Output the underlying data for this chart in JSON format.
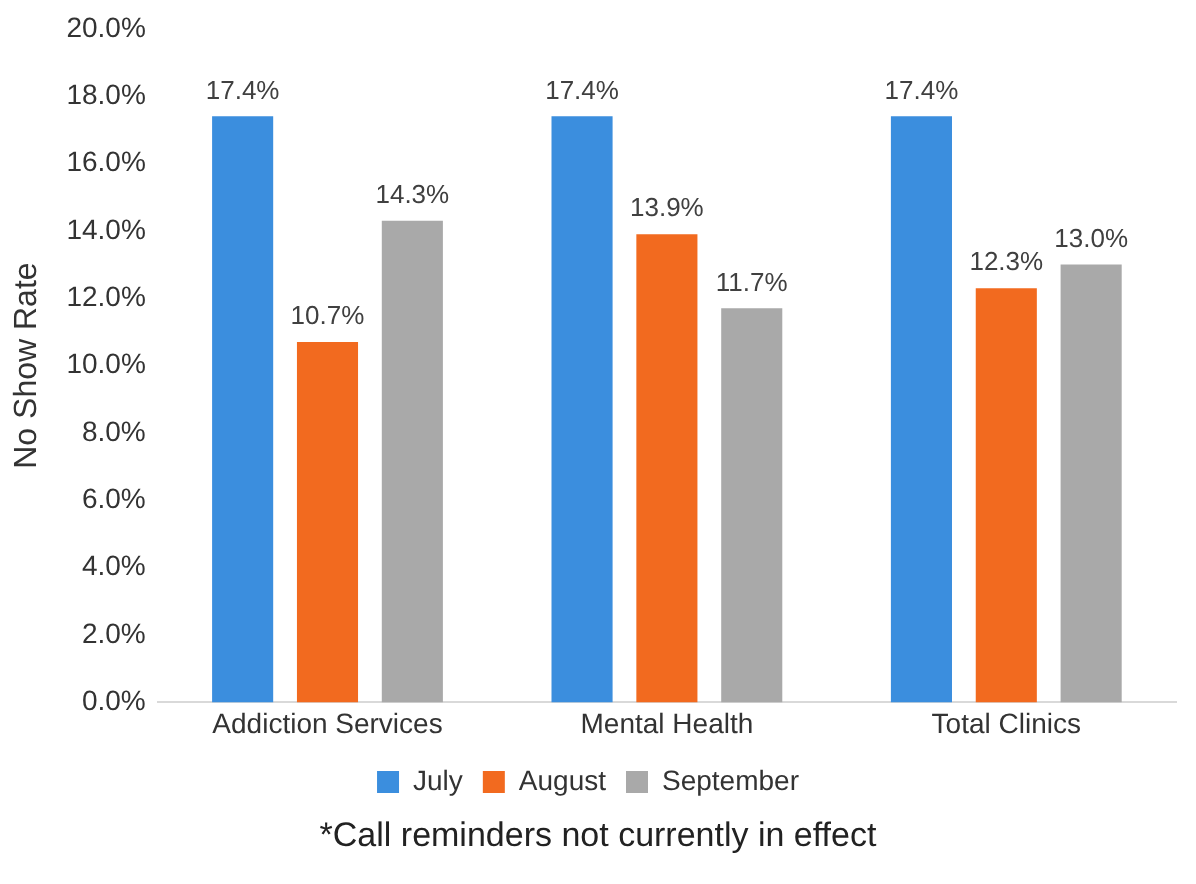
{
  "chart_data": {
    "type": "bar",
    "ylabel": "No Show Rate",
    "categories": [
      "Addiction Services",
      "Mental Health",
      "Total Clinics"
    ],
    "series": [
      {
        "name": "July",
        "color": "#3b8ede",
        "values": [
          17.4,
          17.4,
          17.4
        ],
        "value_labels": [
          "17.4%",
          "17.4%",
          "17.4%"
        ]
      },
      {
        "name": "August",
        "color": "#f26a1f",
        "values": [
          10.7,
          13.9,
          12.3
        ],
        "value_labels": [
          "10.7%",
          "13.9%",
          "12.3%"
        ]
      },
      {
        "name": "September",
        "color": "#a9a9a9",
        "values": [
          14.3,
          11.7,
          13.0
        ],
        "value_labels": [
          "14.3%",
          "11.7%",
          "13.0%"
        ]
      }
    ],
    "ylim": [
      0,
      20
    ],
    "yticks": [
      {
        "value": 0,
        "label": "0.0%"
      },
      {
        "value": 2,
        "label": "2.0%"
      },
      {
        "value": 4,
        "label": "4.0%"
      },
      {
        "value": 6,
        "label": "6.0%"
      },
      {
        "value": 8,
        "label": "8.0%"
      },
      {
        "value": 10,
        "label": "10.0%"
      },
      {
        "value": 12,
        "label": "12.0%"
      },
      {
        "value": 14,
        "label": "14.0%"
      },
      {
        "value": 16,
        "label": "16.0%"
      },
      {
        "value": 18,
        "label": "18.0%"
      },
      {
        "value": 20,
        "label": "20.0%"
      }
    ],
    "grid": false,
    "legend": "bottom",
    "annotations": [
      "*Call reminders not currently in effect"
    ]
  }
}
